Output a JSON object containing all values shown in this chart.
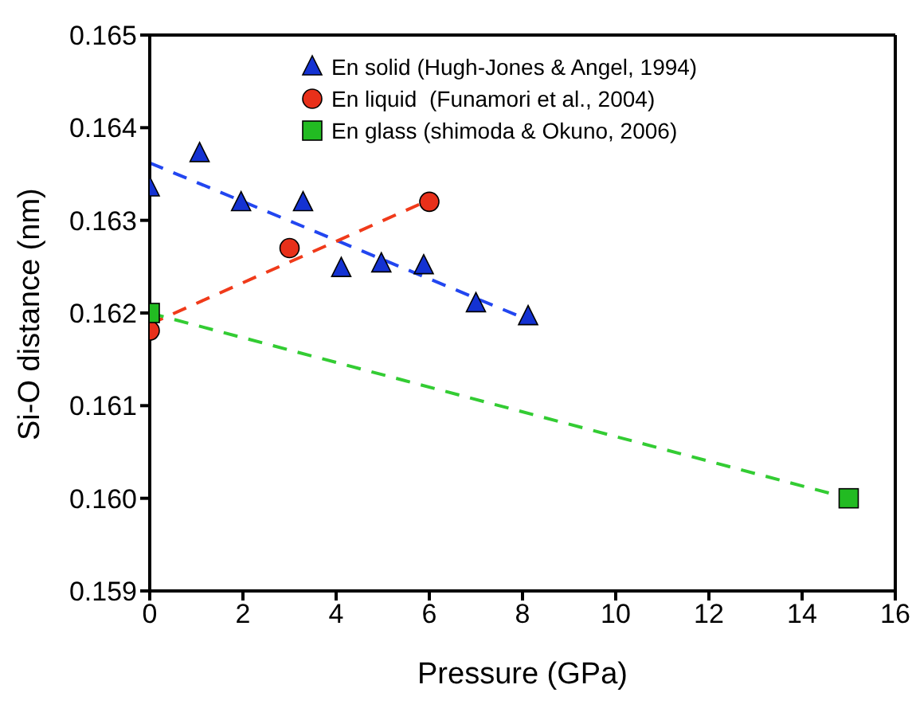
{
  "chart_data": {
    "type": "scatter",
    "xlabel": "Pressure (GPa)",
    "ylabel": "Si-O distance (nm)",
    "xlim": [
      0,
      16
    ],
    "xticks": [
      0,
      2,
      4,
      6,
      8,
      10,
      12,
      14,
      16
    ],
    "ylim": [
      0.159,
      0.165
    ],
    "yticks": [
      0.159,
      {
        "value": 0.16,
        "label": "0.160"
      },
      0.161,
      0.162,
      0.163,
      0.164,
      0.165
    ],
    "legend": "top",
    "series": [
      {
        "name": "En solid (Hugh-Jones & Angel, 1994)",
        "color": "#1432d2",
        "marker": "triangle",
        "x": [
          0,
          1.07,
          1.96,
          3.29,
          4.11,
          4.97,
          5.88,
          7.0,
          8.12
        ],
        "values": [
          0.16335,
          0.16372,
          0.16319,
          0.16319,
          0.16248,
          0.16253,
          0.16251,
          0.1621,
          0.16196
        ]
      },
      {
        "name": "En liquid  (Funamori et al., 2004)",
        "color": "#e8301a",
        "marker": "circle",
        "x": [
          0,
          3.0,
          6.0
        ],
        "values": [
          0.16181,
          0.1627,
          0.1632
        ]
      },
      {
        "name": "En glass (shimoda & Okuno, 2006)",
        "color": "#22bb22",
        "marker": "square",
        "x": [
          0,
          15
        ],
        "values": [
          0.162,
          0.16
        ]
      },
      {
        "type": "line",
        "color": "#2246f0",
        "marker": "none",
        "line_style": "dashed",
        "x": [
          0,
          8.1
        ],
        "values": [
          0.16362,
          0.16193
        ]
      },
      {
        "type": "line",
        "color": "#f03a1a",
        "marker": "none",
        "line_style": "dashed",
        "x": [
          0,
          6
        ],
        "values": [
          0.16188,
          0.16322
        ]
      },
      {
        "type": "line",
        "color": "#33cc33",
        "marker": "none",
        "line_style": "dashed",
        "x": [
          0,
          15
        ],
        "values": [
          0.162,
          0.16
        ]
      }
    ]
  }
}
